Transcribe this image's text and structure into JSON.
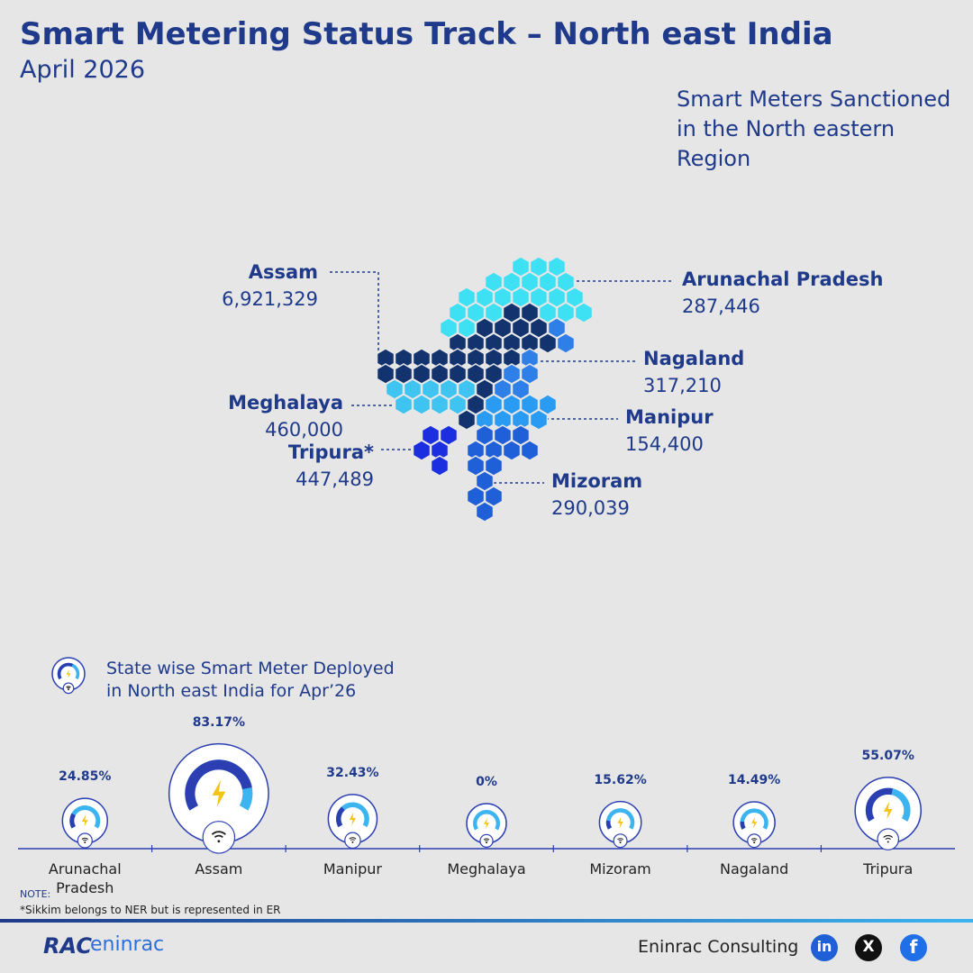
{
  "header": {
    "title": "Smart Metering Status Track – North east India",
    "subtitle": "April 2026"
  },
  "map": {
    "title": "Smart Meters Sanctioned in the North eastern Region",
    "states": [
      {
        "name": "Assam",
        "sanctioned": "6,921,329"
      },
      {
        "name": "Arunachal Pradesh",
        "sanctioned": "287,446"
      },
      {
        "name": "Nagaland",
        "sanctioned": "317,210"
      },
      {
        "name": "Meghalaya",
        "sanctioned": "460,000"
      },
      {
        "name": "Manipur",
        "sanctioned": "154,400"
      },
      {
        "name": "Tripura*",
        "sanctioned": "447,489"
      },
      {
        "name": "Mizoram",
        "sanctioned": "290,039"
      }
    ]
  },
  "chart_data": {
    "type": "gauge",
    "title": "State wise Smart Meter Deployed in North east India for Apr’26",
    "categories": [
      "Arunachal Pradesh",
      "Assam",
      "Manipur",
      "Meghalaya",
      "Mizoram",
      "Nagaland",
      "Tripura"
    ],
    "values": [
      24.85,
      83.17,
      32.43,
      0,
      15.62,
      14.49,
      55.07
    ],
    "value_labels": [
      "24.85%",
      "83.17%",
      "32.43%",
      "0%",
      "15.62%",
      "14.49%",
      "55.07%"
    ],
    "ylim": [
      0,
      100
    ],
    "color": "#2b3fb3",
    "track_color": "#3cb4f0"
  },
  "note": {
    "label": "NOTE:",
    "text": "*Sikkim belongs to NER but is represented in ER"
  },
  "footer": {
    "logo": [
      "RAC",
      "eninrac"
    ],
    "company": "Eninrac Consulting",
    "social": [
      "in",
      "X",
      "f"
    ]
  }
}
